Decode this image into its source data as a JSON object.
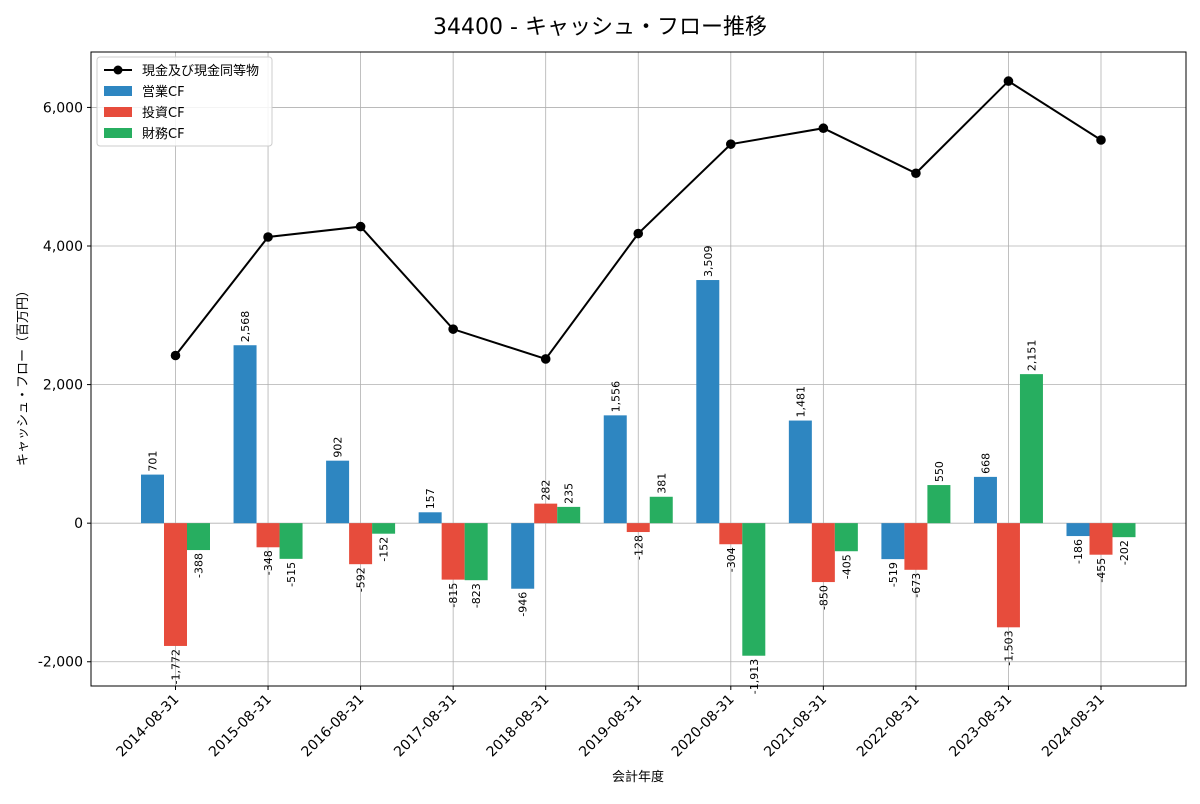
{
  "chart_data": {
    "type": "bar",
    "title": "34400 - キャッシュ・フロー推移",
    "xlabel": "会計年度",
    "ylabel": "キャッシュ・フロー（百万円）",
    "categories": [
      "2014-08-31",
      "2015-08-31",
      "2016-08-31",
      "2017-08-31",
      "2018-08-31",
      "2019-08-31",
      "2020-08-31",
      "2021-08-31",
      "2022-08-31",
      "2023-08-31",
      "2024-08-31"
    ],
    "ylim": [
      -2350,
      6800
    ],
    "yticks": [
      -2000,
      0,
      2000,
      4000,
      6000
    ],
    "ytick_labels": [
      "-2,000",
      "0",
      "2,000",
      "4,000",
      "6,000"
    ],
    "grid": true,
    "legend_position": "top-left",
    "series": [
      {
        "name": "営業CF",
        "kind": "bar",
        "color": "#2e86c1",
        "values": [
          701,
          2568,
          902,
          157,
          -946,
          1556,
          3509,
          1481,
          -519,
          668,
          -186
        ],
        "labels": [
          "701",
          "2,568",
          "902",
          "157",
          "-946",
          "1,556",
          "3,509",
          "1,481",
          "-519",
          "668",
          "-186"
        ]
      },
      {
        "name": "投資CF",
        "kind": "bar",
        "color": "#e74c3c",
        "values": [
          -1772,
          -348,
          -592,
          -815,
          282,
          -128,
          -304,
          -850,
          -673,
          -1503,
          -455
        ],
        "labels": [
          "-1,772",
          "-348",
          "-592",
          "-815",
          "282",
          "-128",
          "-304",
          "-850",
          "-673",
          "-1,503",
          "-455"
        ]
      },
      {
        "name": "財務CF",
        "kind": "bar",
        "color": "#27ae60",
        "values": [
          -388,
          -515,
          -152,
          -823,
          235,
          381,
          -1913,
          -405,
          550,
          2151,
          -202
        ],
        "labels": [
          "-388",
          "-515",
          "-152",
          "-823",
          "235",
          "381",
          "-1,913",
          "-405",
          "550",
          "2,151",
          "-202"
        ]
      },
      {
        "name": "現金及び現金同等物",
        "kind": "line",
        "color": "#000000",
        "values": [
          2420,
          4130,
          4280,
          2800,
          2370,
          4180,
          5470,
          5700,
          5050,
          6380,
          5530
        ]
      }
    ]
  }
}
